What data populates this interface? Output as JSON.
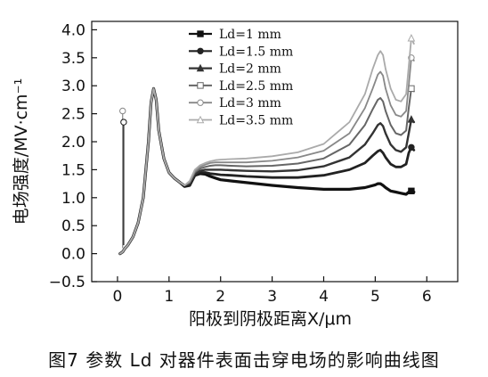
{
  "caption": "图7 参数 Ld 对器件表面击穿电场的影响曲线图",
  "chart_data": {
    "type": "line",
    "title": "",
    "xlabel": "阳极到阴极距离X/μm",
    "ylabel": "电场强度/MV·cm⁻¹",
    "xlim": [
      -0.5,
      6.6
    ],
    "ylim": [
      -0.5,
      4.15
    ],
    "xticks": [
      0,
      1,
      2,
      3,
      4,
      5,
      6
    ],
    "xtick_labels": [
      "0",
      "1",
      "2",
      "3",
      "4",
      "5",
      "6"
    ],
    "yticks": [
      -0.5,
      0,
      0.5,
      1,
      1.5,
      2,
      2.5,
      3,
      3.5,
      4
    ],
    "ytick_labels": [
      "−0.5",
      "0.0",
      "0.5",
      "1.0",
      "1.5",
      "2.0",
      "2.5",
      "3.0",
      "3.5",
      "4.0"
    ],
    "grid": false,
    "legend_position": "top-center",
    "series": [
      {
        "name": "Ld=1 mm",
        "marker": "square-filled",
        "x": [
          0.05,
          0.1,
          0.15,
          0.2,
          0.3,
          0.4,
          0.5,
          0.6,
          0.65,
          0.7,
          0.75,
          0.8,
          0.9,
          1.0,
          1.1,
          1.2,
          1.3,
          1.4,
          1.5,
          1.6,
          1.7,
          1.8,
          1.9,
          2.0,
          2.2,
          2.5,
          3.0,
          3.5,
          4.0,
          4.5,
          4.8,
          5.0,
          5.05,
          5.1,
          5.15,
          5.2,
          5.3,
          5.4,
          5.5,
          5.6,
          5.65,
          5.7,
          5.75
        ],
        "y": [
          0.0,
          0.03,
          0.1,
          0.15,
          0.3,
          0.55,
          1.0,
          2.0,
          2.7,
          2.95,
          2.75,
          2.2,
          1.7,
          1.45,
          1.35,
          1.28,
          1.2,
          1.22,
          1.4,
          1.43,
          1.42,
          1.38,
          1.35,
          1.32,
          1.3,
          1.27,
          1.22,
          1.18,
          1.15,
          1.15,
          1.18,
          1.23,
          1.25,
          1.25,
          1.22,
          1.18,
          1.12,
          1.1,
          1.08,
          1.06,
          1.1,
          1.12,
          1.1
        ]
      },
      {
        "name": "Ld=1.5 mm",
        "marker": "circle-filled",
        "x": [
          0.05,
          0.1,
          0.15,
          0.2,
          0.3,
          0.4,
          0.5,
          0.6,
          0.65,
          0.7,
          0.75,
          0.8,
          0.9,
          1.0,
          1.1,
          1.2,
          1.3,
          1.4,
          1.5,
          1.6,
          1.7,
          1.8,
          1.9,
          2.0,
          2.2,
          2.5,
          3.0,
          3.5,
          4.0,
          4.5,
          4.8,
          4.95,
          5.05,
          5.1,
          5.15,
          5.2,
          5.3,
          5.4,
          5.5,
          5.6,
          5.65,
          5.7,
          5.75
        ],
        "y": [
          0.0,
          0.03,
          0.1,
          0.15,
          0.3,
          0.55,
          1.0,
          2.0,
          2.7,
          2.95,
          2.75,
          2.2,
          1.7,
          1.45,
          1.35,
          1.28,
          1.22,
          1.22,
          1.4,
          1.45,
          1.45,
          1.43,
          1.42,
          1.41,
          1.4,
          1.38,
          1.36,
          1.36,
          1.4,
          1.5,
          1.62,
          1.75,
          1.83,
          1.85,
          1.8,
          1.72,
          1.6,
          1.55,
          1.55,
          1.6,
          1.8,
          1.9,
          1.85
        ]
      },
      {
        "name": "Ld=2 mm",
        "marker": "triangle-filled",
        "x": [
          0.05,
          0.1,
          0.15,
          0.2,
          0.3,
          0.4,
          0.5,
          0.6,
          0.65,
          0.7,
          0.75,
          0.8,
          0.9,
          1.0,
          1.1,
          1.2,
          1.3,
          1.4,
          1.5,
          1.6,
          1.7,
          1.8,
          1.9,
          2.0,
          2.2,
          2.5,
          3.0,
          3.5,
          4.0,
          4.5,
          4.8,
          4.95,
          5.05,
          5.1,
          5.15,
          5.2,
          5.3,
          5.4,
          5.5,
          5.6,
          5.65,
          5.7,
          5.75
        ],
        "y": [
          0.0,
          0.03,
          0.1,
          0.15,
          0.3,
          0.55,
          1.0,
          2.0,
          2.7,
          2.95,
          2.75,
          2.2,
          1.7,
          1.45,
          1.35,
          1.28,
          1.22,
          1.25,
          1.42,
          1.48,
          1.5,
          1.5,
          1.5,
          1.5,
          1.49,
          1.48,
          1.47,
          1.49,
          1.56,
          1.72,
          1.95,
          2.15,
          2.3,
          2.33,
          2.28,
          2.15,
          1.95,
          1.85,
          1.82,
          1.9,
          2.15,
          2.4,
          2.35
        ]
      },
      {
        "name": "Ld=2.5 mm",
        "marker": "square-open",
        "x": [
          0.05,
          0.1,
          0.15,
          0.2,
          0.3,
          0.4,
          0.5,
          0.6,
          0.65,
          0.7,
          0.75,
          0.8,
          0.9,
          1.0,
          1.1,
          1.2,
          1.3,
          1.4,
          1.5,
          1.6,
          1.7,
          1.8,
          1.9,
          2.0,
          2.2,
          2.5,
          3.0,
          3.5,
          4.0,
          4.5,
          4.8,
          4.95,
          5.05,
          5.1,
          5.15,
          5.2,
          5.3,
          5.4,
          5.5,
          5.6,
          5.65,
          5.7,
          5.75
        ],
        "y": [
          0.0,
          0.03,
          0.1,
          0.15,
          0.3,
          0.55,
          1.0,
          2.0,
          2.7,
          2.95,
          2.75,
          2.2,
          1.7,
          1.45,
          1.35,
          1.28,
          1.22,
          1.27,
          1.45,
          1.52,
          1.55,
          1.57,
          1.58,
          1.58,
          1.57,
          1.56,
          1.57,
          1.61,
          1.7,
          1.95,
          2.3,
          2.58,
          2.75,
          2.78,
          2.72,
          2.55,
          2.3,
          2.15,
          2.12,
          2.2,
          2.6,
          2.95,
          2.9
        ]
      },
      {
        "name": "Ld=3 mm",
        "marker": "circle-open",
        "x": [
          0.05,
          0.1,
          0.15,
          0.2,
          0.3,
          0.4,
          0.5,
          0.6,
          0.65,
          0.7,
          0.75,
          0.8,
          0.9,
          1.0,
          1.1,
          1.2,
          1.3,
          1.4,
          1.5,
          1.6,
          1.7,
          1.8,
          1.9,
          2.0,
          2.2,
          2.5,
          3.0,
          3.5,
          4.0,
          4.5,
          4.8,
          4.95,
          5.05,
          5.1,
          5.15,
          5.2,
          5.3,
          5.4,
          5.5,
          5.6,
          5.65,
          5.7,
          5.75
        ],
        "y": [
          0.0,
          0.03,
          0.1,
          0.15,
          0.3,
          0.55,
          1.0,
          2.0,
          2.7,
          2.95,
          2.75,
          2.2,
          1.7,
          1.45,
          1.35,
          1.28,
          1.22,
          1.28,
          1.47,
          1.55,
          1.59,
          1.62,
          1.63,
          1.63,
          1.63,
          1.63,
          1.66,
          1.72,
          1.84,
          2.15,
          2.6,
          2.95,
          3.2,
          3.25,
          3.18,
          2.95,
          2.65,
          2.48,
          2.45,
          2.55,
          3.0,
          3.5,
          3.45
        ]
      },
      {
        "name": "Ld=3.5 mm",
        "marker": "triangle-open",
        "x": [
          0.05,
          0.1,
          0.15,
          0.2,
          0.3,
          0.4,
          0.5,
          0.6,
          0.65,
          0.7,
          0.75,
          0.8,
          0.9,
          1.0,
          1.1,
          1.2,
          1.3,
          1.4,
          1.5,
          1.6,
          1.7,
          1.8,
          1.9,
          2.0,
          2.2,
          2.5,
          3.0,
          3.5,
          4.0,
          4.5,
          4.8,
          4.95,
          5.05,
          5.1,
          5.15,
          5.2,
          5.3,
          5.4,
          5.5,
          5.6,
          5.65,
          5.7,
          5.75
        ],
        "y": [
          0.0,
          0.03,
          0.1,
          0.15,
          0.3,
          0.55,
          1.0,
          2.0,
          2.7,
          2.95,
          2.75,
          2.2,
          1.7,
          1.45,
          1.35,
          1.28,
          1.22,
          1.3,
          1.5,
          1.58,
          1.62,
          1.65,
          1.67,
          1.68,
          1.69,
          1.7,
          1.74,
          1.81,
          1.96,
          2.35,
          2.85,
          3.3,
          3.55,
          3.62,
          3.55,
          3.3,
          2.95,
          2.75,
          2.72,
          2.85,
          3.35,
          3.85,
          3.75
        ]
      }
    ],
    "spikes": [
      {
        "x": 0.1,
        "y": [
          0.1,
          2.55
        ],
        "color": "#888888"
      },
      {
        "x": 0.12,
        "y": [
          0.15,
          2.35
        ],
        "color": "#111111"
      }
    ]
  }
}
